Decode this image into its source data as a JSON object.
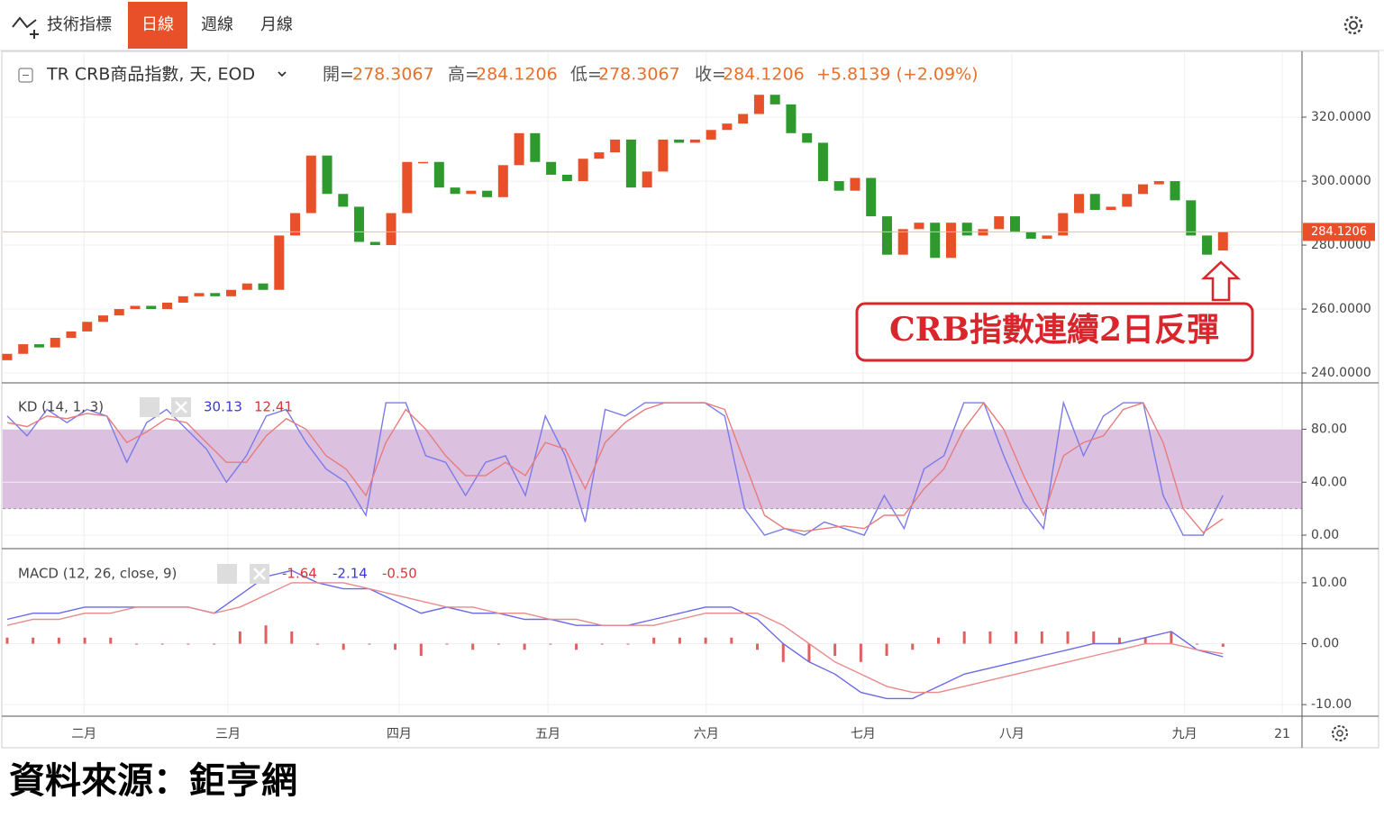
{
  "toolbar": {
    "indicators": "技術指標",
    "tabs": [
      "日線",
      "週線",
      "月線"
    ]
  },
  "footer": "資料來源：鉅亨網",
  "chart_data": [
    {
      "type": "candlestick",
      "title": "TR CRB商品指數, 天, EOD",
      "ohlc_legend": [
        {
          "label": "開=",
          "value": 278.3067
        },
        {
          "label": "高=",
          "value": 284.1206
        },
        {
          "label": "低=",
          "value": 278.3067
        },
        {
          "label": "收=",
          "value": 284.1206
        }
      ],
      "change": "+5.8139 (+2.09%)",
      "open": [
        244,
        246,
        249,
        248,
        251,
        253,
        256,
        258,
        260,
        261,
        260,
        262,
        264,
        265,
        264,
        266,
        268,
        266,
        283,
        290,
        308,
        296,
        292,
        281,
        280,
        290,
        306,
        306,
        298,
        296,
        297,
        295,
        305,
        315,
        306,
        302,
        300,
        307,
        309,
        313,
        298,
        303,
        313,
        312,
        313,
        316,
        318,
        321,
        327,
        324,
        315,
        312,
        300,
        297,
        301,
        289,
        277,
        285,
        287,
        276,
        287,
        283,
        285,
        289,
        284,
        282,
        283,
        290,
        296,
        291,
        292,
        296,
        299,
        300,
        294,
        283,
        278.3067
      ],
      "close": [
        246,
        249,
        248,
        251,
        253,
        256,
        258,
        260,
        261,
        260,
        262,
        264,
        265,
        264,
        266,
        268,
        266,
        283,
        290,
        308,
        296,
        292,
        281,
        280,
        290,
        306,
        306,
        298,
        296,
        297,
        295,
        305,
        315,
        306,
        302,
        300,
        307,
        309,
        313,
        298,
        303,
        313,
        312,
        313,
        316,
        318,
        321,
        327,
        324,
        315,
        312,
        300,
        297,
        301,
        289,
        277,
        285,
        287,
        276,
        287,
        283,
        285,
        289,
        284,
        282,
        283,
        290,
        296,
        291,
        292,
        296,
        299,
        300,
        294,
        283,
        277,
        284.1206
      ],
      "colors": {
        "up": "#e8502a",
        "down": "#2e9a2e"
      },
      "xlim": [
        -0.28,
        80.94
      ],
      "xticks": [
        {
          "value": 4.8,
          "label": "二月"
        },
        {
          "value": 13.8,
          "label": "三月"
        },
        {
          "value": 24.5,
          "label": "四月"
        },
        {
          "value": 33.8,
          "label": "五月"
        },
        {
          "value": 43.7,
          "label": "六月"
        },
        {
          "value": 53.5,
          "label": "七月"
        },
        {
          "value": 62.8,
          "label": "八月"
        },
        {
          "value": 73.6,
          "label": "九月"
        },
        {
          "value": 79.7,
          "label": "21"
        }
      ],
      "ylim": [
        237.2,
        340.3
      ],
      "yticks": [
        {
          "value": 240,
          "label": "240.0000"
        },
        {
          "value": 260,
          "label": "260.0000"
        },
        {
          "value": 280,
          "label": "280.0000"
        },
        {
          "value": 300,
          "label": "300.0000"
        },
        {
          "value": 320,
          "label": "320.0000"
        }
      ],
      "annotation": "CRB指數連續2日反彈"
    },
    {
      "type": "line",
      "title": "KD (14, 1, 3)",
      "series": [
        {
          "color": "#7b7be8",
          "values": [
            90,
            75,
            95,
            85,
            95,
            90,
            55,
            85,
            95,
            80,
            65,
            40,
            60,
            90,
            95,
            70,
            50,
            40,
            15,
            100,
            100,
            60,
            55,
            30,
            55,
            60,
            30,
            90,
            60,
            10,
            95,
            90,
            100,
            100,
            100,
            100,
            90,
            20,
            0,
            5,
            0,
            10,
            5,
            0,
            30,
            5,
            50,
            60,
            100,
            100,
            60,
            25,
            5,
            100,
            60,
            90,
            100,
            100,
            30,
            0,
            0,
            30.13
          ]
        },
        {
          "color": "#e87b7b",
          "values": [
            85,
            82,
            90,
            88,
            92,
            90,
            70,
            78,
            88,
            85,
            70,
            55,
            55,
            75,
            88,
            80,
            60,
            50,
            30,
            70,
            95,
            80,
            60,
            45,
            45,
            55,
            45,
            70,
            65,
            35,
            70,
            85,
            95,
            100,
            100,
            100,
            95,
            55,
            15,
            5,
            3,
            5,
            7,
            5,
            15,
            15,
            35,
            50,
            80,
            100,
            80,
            45,
            15,
            60,
            70,
            75,
            95,
            100,
            70,
            20,
            2,
            12.41
          ]
        }
      ],
      "band": [
        20,
        80
      ],
      "band_color": "#dcc0e0",
      "ylim": [
        -8.8,
        113
      ],
      "yticks": [
        {
          "value": 0,
          "label": "0.00"
        },
        {
          "value": 40,
          "label": "40.00"
        },
        {
          "value": 80,
          "label": "80.00"
        }
      ]
    },
    {
      "type": "macd",
      "title": "MACD (12, 26, close, 9)",
      "series": [
        {
          "color": "#6a6ae8",
          "values": [
            4,
            5,
            5,
            6,
            6,
            6,
            6,
            6,
            5,
            8,
            11,
            12,
            10,
            9,
            9,
            7,
            5,
            6,
            5,
            5,
            4,
            4,
            3,
            3,
            3,
            4,
            5,
            6,
            6,
            4,
            0,
            -3,
            -5,
            -8,
            -9,
            -9,
            -7,
            -5,
            -4,
            -3,
            -2,
            -1,
            0,
            0,
            1,
            2,
            -1,
            -2.14
          ]
        },
        {
          "color": "#e88a8a",
          "values": [
            3,
            4,
            4,
            5,
            5,
            6,
            6,
            6,
            5,
            6,
            8,
            10,
            10,
            10,
            9,
            8,
            7,
            6,
            6,
            5,
            5,
            4,
            4,
            3,
            3,
            3,
            4,
            5,
            5,
            5,
            3,
            0,
            -3,
            -5,
            -7,
            -8,
            -8,
            -7,
            -6,
            -5,
            -4,
            -3,
            -2,
            -1,
            0,
            0,
            -1,
            -1.64
          ]
        }
      ],
      "histogram": {
        "color": "#e06060",
        "values": [
          1,
          1,
          1,
          1,
          1,
          0,
          0,
          0,
          0,
          2,
          3,
          2,
          0,
          -1,
          0,
          -1,
          -2,
          0,
          -1,
          0,
          -1,
          0,
          -1,
          0,
          0,
          1,
          1,
          1,
          1,
          -1,
          -3,
          -3,
          -2,
          -3,
          -2,
          -1,
          1,
          2,
          2,
          2,
          2,
          2,
          2,
          1,
          1,
          2,
          0,
          -0.5
        ],
        "last_label": "-0.50"
      },
      "ylim": [
        -11.6,
        15.3
      ],
      "yticks": [
        {
          "value": -10,
          "label": "-10.00"
        },
        {
          "value": 0,
          "label": "0.00"
        },
        {
          "value": 10,
          "label": "10.00"
        }
      ]
    }
  ]
}
